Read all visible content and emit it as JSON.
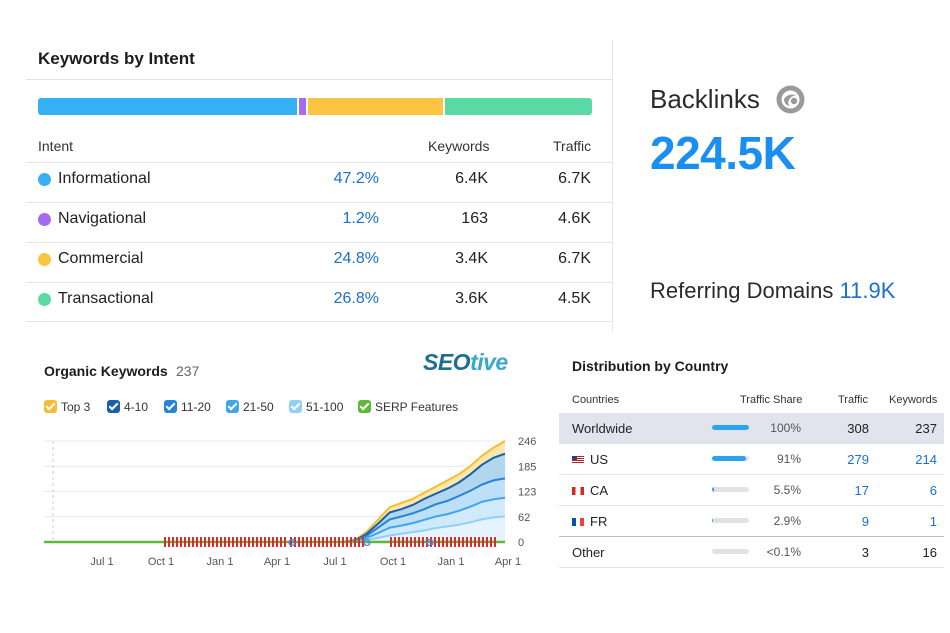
{
  "intent": {
    "title": "Keywords by Intent",
    "columns": {
      "intent": "Intent",
      "keywords": "Keywords",
      "traffic": "Traffic"
    },
    "rows": [
      {
        "name": "Informational",
        "share": "47.2%",
        "keywords": "6.4K",
        "traffic": "6.7K",
        "color": "#35b0f5",
        "fraction": 0.472
      },
      {
        "name": "Navigational",
        "share": "1.2%",
        "keywords": "163",
        "traffic": "4.6K",
        "color": "#a56cf0",
        "fraction": 0.012
      },
      {
        "name": "Commercial",
        "share": "24.8%",
        "keywords": "3.4K",
        "traffic": "6.7K",
        "color": "#fbc443",
        "fraction": 0.248
      },
      {
        "name": "Transactional",
        "share": "26.8%",
        "keywords": "3.6K",
        "traffic": "4.5K",
        "color": "#5bd9a4",
        "fraction": 0.268
      }
    ]
  },
  "backlinks": {
    "label": "Backlinks",
    "value": "224.5K",
    "referring_label": "Referring Domains",
    "referring_value": "11.9K"
  },
  "organic": {
    "title": "Organic Keywords",
    "count": "237",
    "logo_part1": "SEO",
    "logo_part2": "tive",
    "legend": [
      {
        "label": "Top 3",
        "color": "#f5bd32"
      },
      {
        "label": "4-10",
        "color": "#1b5fa8"
      },
      {
        "label": "11-20",
        "color": "#2584d6"
      },
      {
        "label": "21-50",
        "color": "#3fa6ee"
      },
      {
        "label": "51-100",
        "color": "#90d0f7"
      },
      {
        "label": "SERP Features",
        "color": "#5fb83a"
      }
    ]
  },
  "chart_data": {
    "type": "area",
    "title": "Organic Keywords",
    "x_ticks": [
      "Jul 1",
      "Oct 1",
      "Jan 1",
      "Apr 1",
      "Jul 1",
      "Oct 1",
      "Jan 1",
      "Apr 1"
    ],
    "y_ticks": [
      "246",
      "185",
      "123",
      "62",
      "0"
    ],
    "ylim": [
      0,
      246
    ],
    "series": [
      {
        "name": "Top 3",
        "values": [
          0,
          0,
          0,
          0,
          0,
          0,
          0,
          0,
          0,
          0,
          0,
          0,
          0,
          0,
          0,
          0,
          0,
          0,
          0,
          0,
          0,
          0,
          0,
          0,
          0,
          0,
          0,
          5,
          25,
          55,
          85,
          95,
          105,
          120,
          135,
          150,
          165,
          185,
          210,
          230,
          246
        ]
      },
      {
        "name": "4-10",
        "values": [
          0,
          0,
          0,
          0,
          0,
          0,
          0,
          0,
          0,
          0,
          0,
          0,
          0,
          0,
          0,
          0,
          0,
          0,
          0,
          0,
          0,
          0,
          0,
          0,
          0,
          0,
          0,
          4,
          20,
          45,
          72,
          80,
          90,
          105,
          118,
          130,
          145,
          165,
          188,
          205,
          215
        ]
      },
      {
        "name": "11-20",
        "values": [
          0,
          0,
          0,
          0,
          0,
          0,
          0,
          0,
          0,
          0,
          0,
          0,
          0,
          0,
          0,
          0,
          0,
          0,
          0,
          0,
          0,
          0,
          0,
          0,
          0,
          0,
          0,
          3,
          15,
          35,
          55,
          62,
          70,
          80,
          92,
          100,
          112,
          125,
          140,
          150,
          155
        ]
      },
      {
        "name": "21-50",
        "values": [
          0,
          0,
          0,
          0,
          0,
          0,
          0,
          0,
          0,
          0,
          0,
          0,
          0,
          0,
          0,
          0,
          0,
          0,
          0,
          0,
          0,
          0,
          0,
          0,
          0,
          0,
          0,
          2,
          10,
          22,
          35,
          40,
          46,
          54,
          62,
          68,
          76,
          86,
          98,
          104,
          108
        ]
      },
      {
        "name": "51-100",
        "values": [
          0,
          0,
          0,
          0,
          0,
          0,
          0,
          0,
          0,
          0,
          0,
          0,
          0,
          0,
          0,
          0,
          0,
          0,
          0,
          0,
          0,
          0,
          0,
          0,
          0,
          0,
          0,
          1,
          5,
          10,
          16,
          20,
          24,
          28,
          34,
          38,
          42,
          48,
          55,
          60,
          62
        ]
      }
    ]
  },
  "distribution": {
    "title": "Distribution by Country",
    "columns": {
      "countries": "Countries",
      "share": "Traffic Share",
      "traffic": "Traffic",
      "keywords": "Keywords"
    },
    "rows": [
      {
        "country": "Worldwide",
        "flag": "",
        "share": "100%",
        "fraction": 1.0,
        "traffic": "308",
        "keywords": "237",
        "link": false
      },
      {
        "country": "US",
        "flag": "us",
        "share": "91%",
        "fraction": 0.91,
        "traffic": "279",
        "keywords": "214",
        "link": true
      },
      {
        "country": "CA",
        "flag": "ca",
        "share": "5.5%",
        "fraction": 0.055,
        "traffic": "17",
        "keywords": "6",
        "link": true
      },
      {
        "country": "FR",
        "flag": "fr",
        "share": "2.9%",
        "fraction": 0.029,
        "traffic": "9",
        "keywords": "1",
        "link": true
      },
      {
        "country": "Other",
        "flag": "",
        "share": "<0.1%",
        "fraction": 0.0,
        "traffic": "3",
        "keywords": "16",
        "link": false
      }
    ]
  }
}
